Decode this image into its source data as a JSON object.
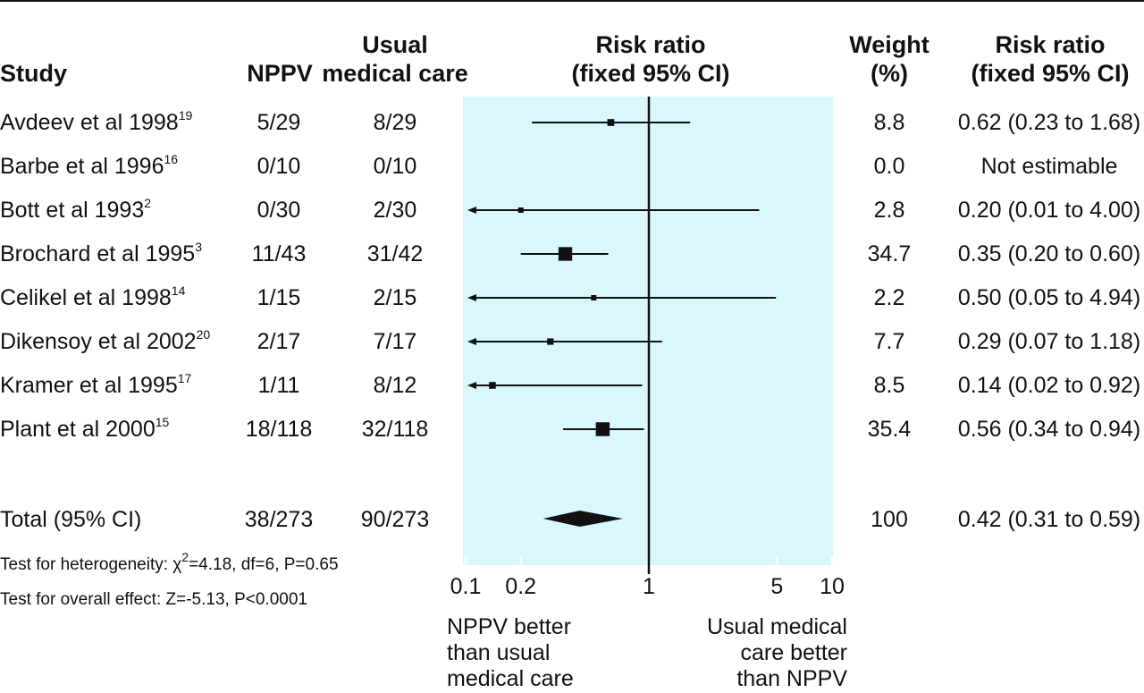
{
  "headers": {
    "study": "Study",
    "nppv": "NPPV",
    "usual_line1": "Usual",
    "usual_line2": "medical care",
    "rr_plot_line1": "Risk ratio",
    "rr_plot_line2": "(fixed 95% CI)",
    "weight_line1": "Weight",
    "weight_line2": "(%)",
    "rr_line1": "Risk ratio",
    "rr_line2": "(fixed 95% CI)"
  },
  "rows": [
    {
      "study": "Avdeev et al 1998",
      "ref": "19",
      "nppv": "5/29",
      "usual": "8/29",
      "weight": "8.8",
      "rr_text": "0.62 (0.23 to 1.68)"
    },
    {
      "study": "Barbe et al 1996",
      "ref": "16",
      "nppv": "0/10",
      "usual": "0/10",
      "weight": "0.0",
      "rr_text": "Not estimable"
    },
    {
      "study": "Bott et al 1993",
      "ref": "2",
      "nppv": "0/30",
      "usual": "2/30",
      "weight": "2.8",
      "rr_text": "0.20 (0.01 to 4.00)"
    },
    {
      "study": "Brochard et al 1995",
      "ref": "3",
      "nppv": "11/43",
      "usual": "31/42",
      "weight": "34.7",
      "rr_text": "0.35 (0.20 to 0.60)"
    },
    {
      "study": "Celikel et al 1998",
      "ref": "14",
      "nppv": "1/15",
      "usual": "2/15",
      "weight": "2.2",
      "rr_text": "0.50 (0.05 to 4.94)"
    },
    {
      "study": "Dikensoy et al 2002",
      "ref": "20",
      "nppv": "2/17",
      "usual": "7/17",
      "weight": "7.7",
      "rr_text": "0.29 (0.07 to 1.18)"
    },
    {
      "study": "Kramer et al 1995",
      "ref": "17",
      "nppv": "1/11",
      "usual": "8/12",
      "weight": "8.5",
      "rr_text": "0.14 (0.02 to 0.92)"
    },
    {
      "study": "Plant et al 2000",
      "ref": "15",
      "nppv": "18/118",
      "usual": "32/118",
      "weight": "35.4",
      "rr_text": "0.56 (0.34 to 0.94)"
    }
  ],
  "total": {
    "label": "Total (95% CI)",
    "nppv": "38/273",
    "usual": "90/273",
    "weight": "100",
    "rr_text": "0.42 (0.31 to 0.59)"
  },
  "heterogeneity": {
    "prefix": "Test for heterogeneity: ",
    "chi": "χ",
    "sup": "2",
    "rest": "=4.18, df=6, P=0.65"
  },
  "overall_effect": "Test for overall effect: Z=-5.13, P<0.0001",
  "axis_labels": {
    "left_line1": "NPPV better",
    "left_line2": "than usual",
    "left_line3": "medical care",
    "right_line1": "Usual medical",
    "right_line2": "care better",
    "right_line3": "than NPPV"
  },
  "colors": {
    "plot_background": "#d9f8fb",
    "ink": "#111111"
  },
  "chart_data": {
    "type": "forest",
    "x_scale": "log",
    "xlim": [
      0.1,
      10
    ],
    "x_ticks": [
      0.1,
      0.2,
      1,
      5,
      10
    ],
    "x_tick_labels": [
      "0.1",
      "0.2",
      "1",
      "5",
      "10"
    ],
    "reference_line": 1,
    "studies": [
      {
        "name": "Avdeev et al 1998",
        "rr": 0.62,
        "lo": 0.23,
        "hi": 1.68,
        "weight": 8.8
      },
      {
        "name": "Barbe et al 1996",
        "rr": null,
        "lo": null,
        "hi": null,
        "weight": 0.0
      },
      {
        "name": "Bott et al 1993",
        "rr": 0.2,
        "lo": 0.01,
        "hi": 4.0,
        "weight": 2.8
      },
      {
        "name": "Brochard et al 1995",
        "rr": 0.35,
        "lo": 0.2,
        "hi": 0.6,
        "weight": 34.7
      },
      {
        "name": "Celikel et al 1998",
        "rr": 0.5,
        "lo": 0.05,
        "hi": 4.94,
        "weight": 2.2
      },
      {
        "name": "Dikensoy et al 2002",
        "rr": 0.29,
        "lo": 0.07,
        "hi": 1.18,
        "weight": 7.7
      },
      {
        "name": "Kramer et al 1995",
        "rr": 0.14,
        "lo": 0.02,
        "hi": 0.92,
        "weight": 8.5
      },
      {
        "name": "Plant et al 2000",
        "rr": 0.56,
        "lo": 0.34,
        "hi": 0.94,
        "weight": 35.4
      }
    ],
    "pooled": {
      "rr": 0.42,
      "lo": 0.31,
      "hi": 0.59
    }
  }
}
